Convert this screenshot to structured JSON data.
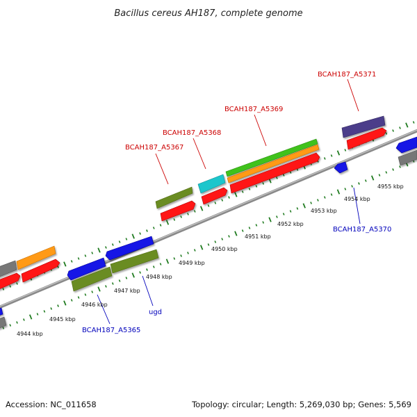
{
  "header": {
    "title": "Bacillus cereus AH187, complete genome"
  },
  "footer": {
    "accession": "Accession: NC_011658",
    "summary": "Topology: circular; Length: 5,269,030 bp; Genes: 5,569"
  },
  "colors": {
    "backbone": "#8f8f8f",
    "ticks": "#1e7a1e",
    "top_label": "#cc0000",
    "bottom_label": "#0000bb"
  },
  "ticks": [
    {
      "label": "4944 kbp"
    },
    {
      "label": "4945 kbp"
    },
    {
      "label": "4946 kbp"
    },
    {
      "label": "4947 kbp"
    },
    {
      "label": "4948 kbp"
    },
    {
      "label": "4949 kbp"
    },
    {
      "label": "4950 kbp"
    },
    {
      "label": "4951 kbp"
    },
    {
      "label": "4952 kbp"
    },
    {
      "label": "4953 kbp"
    },
    {
      "label": "4954 kbp"
    },
    {
      "label": "4955 kbp"
    }
  ],
  "gene_labels": [
    {
      "text": "BCAH187_A5367",
      "strand": "top"
    },
    {
      "text": "BCAH187_A5368",
      "strand": "top"
    },
    {
      "text": "BCAH187_A5369",
      "strand": "top"
    },
    {
      "text": "BCAH187_A5371",
      "strand": "top"
    },
    {
      "text": "BCAH187_A5370",
      "strand": "bottom"
    },
    {
      "text": "ugd",
      "strand": "bottom"
    },
    {
      "text": "BCAH187_A5365",
      "strand": "bottom"
    }
  ]
}
